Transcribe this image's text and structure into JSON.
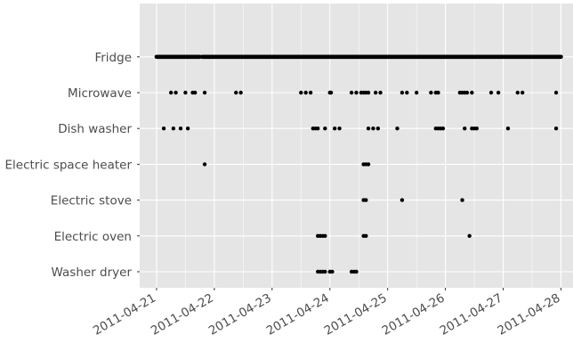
{
  "chart_data": {
    "type": "scatter",
    "x_axis": "date",
    "xlim": [
      "2011-04-20T17:00",
      "2011-04-28T05:00"
    ],
    "x_ticks": [
      "2011-04-21",
      "2011-04-22",
      "2011-04-23",
      "2011-04-24",
      "2011-04-25",
      "2011-04-26",
      "2011-04-27",
      "2011-04-28"
    ],
    "categories": [
      "Washer dryer",
      "Electric oven",
      "Electric stove",
      "Electric space heater",
      "Dish washer",
      "Microwave",
      "Fridge"
    ],
    "grid": true,
    "panel_background": "#e5e5e5",
    "grid_color": "#ffffff",
    "point_color": "#000000",
    "series": [
      {
        "label": "Fridge",
        "segments": [
          [
            "2011-04-21T00:00",
            "2011-04-21T18:00"
          ],
          [
            "2011-04-21T19:00",
            "2011-04-28T00:00"
          ]
        ]
      },
      {
        "label": "Microwave",
        "points": [
          "2011-04-21T06:00",
          "2011-04-21T08:00",
          "2011-04-21T12:00",
          "2011-04-21T15:00",
          "2011-04-21T16:00",
          "2011-04-21T20:00",
          "2011-04-22T09:00",
          "2011-04-22T11:00",
          "2011-04-23T12:00",
          "2011-04-23T14:00",
          "2011-04-23T16:00",
          "2011-04-24T00:00",
          "2011-04-24T00:30",
          "2011-04-24T09:00",
          "2011-04-24T11:00",
          "2011-04-24T13:00",
          "2011-04-24T14:00",
          "2011-04-24T15:00",
          "2011-04-24T16:00",
          "2011-04-24T19:00",
          "2011-04-24T21:00",
          "2011-04-25T06:00",
          "2011-04-25T08:00",
          "2011-04-25T12:00",
          "2011-04-25T18:00",
          "2011-04-25T20:00",
          "2011-04-25T21:00",
          "2011-04-26T06:00",
          "2011-04-26T07:00",
          "2011-04-26T08:00",
          "2011-04-26T09:00",
          "2011-04-26T11:00",
          "2011-04-26T19:00",
          "2011-04-26T22:00",
          "2011-04-27T06:00",
          "2011-04-27T08:00",
          "2011-04-27T22:00"
        ]
      },
      {
        "label": "Dish washer",
        "points": [
          "2011-04-21T03:00",
          "2011-04-21T07:00",
          "2011-04-21T10:00",
          "2011-04-21T13:00",
          "2011-04-23T17:00",
          "2011-04-23T18:00",
          "2011-04-23T19:00",
          "2011-04-23T22:00",
          "2011-04-24T02:00",
          "2011-04-24T04:00",
          "2011-04-24T16:00",
          "2011-04-24T18:00",
          "2011-04-24T20:00",
          "2011-04-25T04:00",
          "2011-04-25T20:00",
          "2011-04-25T21:00",
          "2011-04-25T22:00",
          "2011-04-25T23:00",
          "2011-04-26T08:00",
          "2011-04-26T11:00",
          "2011-04-26T12:00",
          "2011-04-26T13:00",
          "2011-04-27T02:00",
          "2011-04-27T22:00"
        ]
      },
      {
        "label": "Electric space heater",
        "points": [
          "2011-04-21T20:00",
          "2011-04-24T14:00",
          "2011-04-24T15:00",
          "2011-04-24T16:00"
        ]
      },
      {
        "label": "Electric stove",
        "points": [
          "2011-04-24T14:00",
          "2011-04-24T15:00",
          "2011-04-25T06:00",
          "2011-04-26T07:00"
        ]
      },
      {
        "label": "Electric oven",
        "points": [
          "2011-04-23T19:00",
          "2011-04-23T20:00",
          "2011-04-23T21:00",
          "2011-04-23T22:00",
          "2011-04-24T14:00",
          "2011-04-24T15:00",
          "2011-04-26T10:00"
        ]
      },
      {
        "label": "Washer dryer",
        "points": [
          "2011-04-23T19:00",
          "2011-04-23T20:00",
          "2011-04-23T21:00",
          "2011-04-23T22:00",
          "2011-04-24T00:00",
          "2011-04-24T01:00",
          "2011-04-24T09:00",
          "2011-04-24T10:00",
          "2011-04-24T11:00"
        ]
      }
    ]
  }
}
